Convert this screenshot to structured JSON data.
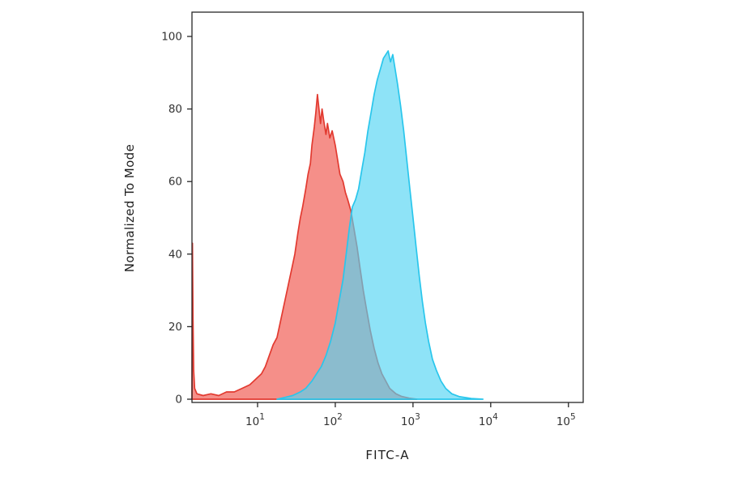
{
  "figure": {
    "background": "#ffffff",
    "frame_color": "#262626",
    "tick_text_color": "#333333"
  },
  "chart_data": {
    "type": "area",
    "title": "",
    "subtitle": "",
    "legend": [],
    "grid": false,
    "x_axis": {
      "label": "FITC-A",
      "scale": "log",
      "range_log": [
        0.156,
        5.19
      ],
      "ticks": [
        {
          "base": "10",
          "exp": "1",
          "log": 1
        },
        {
          "base": "10",
          "exp": "2",
          "log": 2
        },
        {
          "base": "10",
          "exp": "3",
          "log": 3
        },
        {
          "base": "10",
          "exp": "4",
          "log": 4
        },
        {
          "base": "10",
          "exp": "5",
          "log": 5
        }
      ]
    },
    "y_axis": {
      "label": "Normalized To Mode",
      "range": [
        0,
        100
      ],
      "ticks": [
        0,
        20,
        40,
        60,
        80,
        100
      ]
    },
    "series": [
      {
        "name": "red-histogram",
        "stroke": "#e23a30",
        "fill": "rgba(243,115,108,0.80)",
        "peak": {
          "x_log": 1.77,
          "y": 84
        },
        "points": [
          [
            0.156,
            0
          ],
          [
            0.162,
            43
          ],
          [
            0.17,
            22
          ],
          [
            0.178,
            8
          ],
          [
            0.19,
            3
          ],
          [
            0.22,
            1.5
          ],
          [
            0.3,
            1
          ],
          [
            0.4,
            1.5
          ],
          [
            0.5,
            1
          ],
          [
            0.6,
            2
          ],
          [
            0.7,
            2
          ],
          [
            0.8,
            3
          ],
          [
            0.9,
            4
          ],
          [
            1.0,
            6
          ],
          [
            1.05,
            7
          ],
          [
            1.1,
            9
          ],
          [
            1.15,
            12
          ],
          [
            1.2,
            15
          ],
          [
            1.25,
            17
          ],
          [
            1.3,
            22
          ],
          [
            1.35,
            27
          ],
          [
            1.4,
            32
          ],
          [
            1.45,
            37
          ],
          [
            1.48,
            40
          ],
          [
            1.52,
            46
          ],
          [
            1.55,
            50
          ],
          [
            1.58,
            53
          ],
          [
            1.62,
            58
          ],
          [
            1.65,
            62
          ],
          [
            1.68,
            65
          ],
          [
            1.7,
            70
          ],
          [
            1.73,
            75
          ],
          [
            1.75,
            79
          ],
          [
            1.77,
            84
          ],
          [
            1.79,
            80
          ],
          [
            1.81,
            76
          ],
          [
            1.83,
            80
          ],
          [
            1.85,
            77
          ],
          [
            1.88,
            73
          ],
          [
            1.9,
            76
          ],
          [
            1.93,
            72
          ],
          [
            1.96,
            74
          ],
          [
            2.0,
            70
          ],
          [
            2.03,
            66
          ],
          [
            2.06,
            62
          ],
          [
            2.1,
            60
          ],
          [
            2.13,
            57
          ],
          [
            2.16,
            55
          ],
          [
            2.2,
            52
          ],
          [
            2.24,
            47
          ],
          [
            2.28,
            42
          ],
          [
            2.32,
            36
          ],
          [
            2.36,
            30
          ],
          [
            2.4,
            25
          ],
          [
            2.45,
            19
          ],
          [
            2.5,
            14
          ],
          [
            2.55,
            10
          ],
          [
            2.6,
            7
          ],
          [
            2.65,
            5
          ],
          [
            2.7,
            3
          ],
          [
            2.78,
            1.5
          ],
          [
            2.85,
            0.8
          ],
          [
            2.95,
            0.3
          ],
          [
            3.05,
            0
          ]
        ]
      },
      {
        "name": "cyan-histogram",
        "stroke": "#29c6ec",
        "fill": "rgba(82,212,243,0.65)",
        "peak": {
          "x_log": 2.68,
          "y": 96
        },
        "points": [
          [
            1.25,
            0
          ],
          [
            1.35,
            0.5
          ],
          [
            1.45,
            1
          ],
          [
            1.55,
            2
          ],
          [
            1.62,
            3
          ],
          [
            1.7,
            5
          ],
          [
            1.76,
            7
          ],
          [
            1.82,
            9
          ],
          [
            1.88,
            12
          ],
          [
            1.94,
            16
          ],
          [
            2.0,
            21
          ],
          [
            2.05,
            27
          ],
          [
            2.1,
            33
          ],
          [
            2.14,
            40
          ],
          [
            2.18,
            47
          ],
          [
            2.22,
            53
          ],
          [
            2.26,
            55
          ],
          [
            2.3,
            58
          ],
          [
            2.34,
            63
          ],
          [
            2.38,
            68
          ],
          [
            2.42,
            74
          ],
          [
            2.46,
            79
          ],
          [
            2.5,
            84
          ],
          [
            2.54,
            88
          ],
          [
            2.58,
            91
          ],
          [
            2.62,
            94
          ],
          [
            2.65,
            95
          ],
          [
            2.68,
            96
          ],
          [
            2.71,
            93
          ],
          [
            2.74,
            95
          ],
          [
            2.77,
            91
          ],
          [
            2.8,
            87
          ],
          [
            2.84,
            81
          ],
          [
            2.88,
            74
          ],
          [
            2.92,
            66
          ],
          [
            2.96,
            58
          ],
          [
            3.0,
            50
          ],
          [
            3.04,
            42
          ],
          [
            3.08,
            34
          ],
          [
            3.12,
            27
          ],
          [
            3.16,
            21
          ],
          [
            3.2,
            16
          ],
          [
            3.25,
            11
          ],
          [
            3.3,
            8
          ],
          [
            3.36,
            5
          ],
          [
            3.42,
            3
          ],
          [
            3.5,
            1.5
          ],
          [
            3.6,
            0.7
          ],
          [
            3.75,
            0.2
          ],
          [
            3.9,
            0
          ]
        ]
      }
    ]
  }
}
